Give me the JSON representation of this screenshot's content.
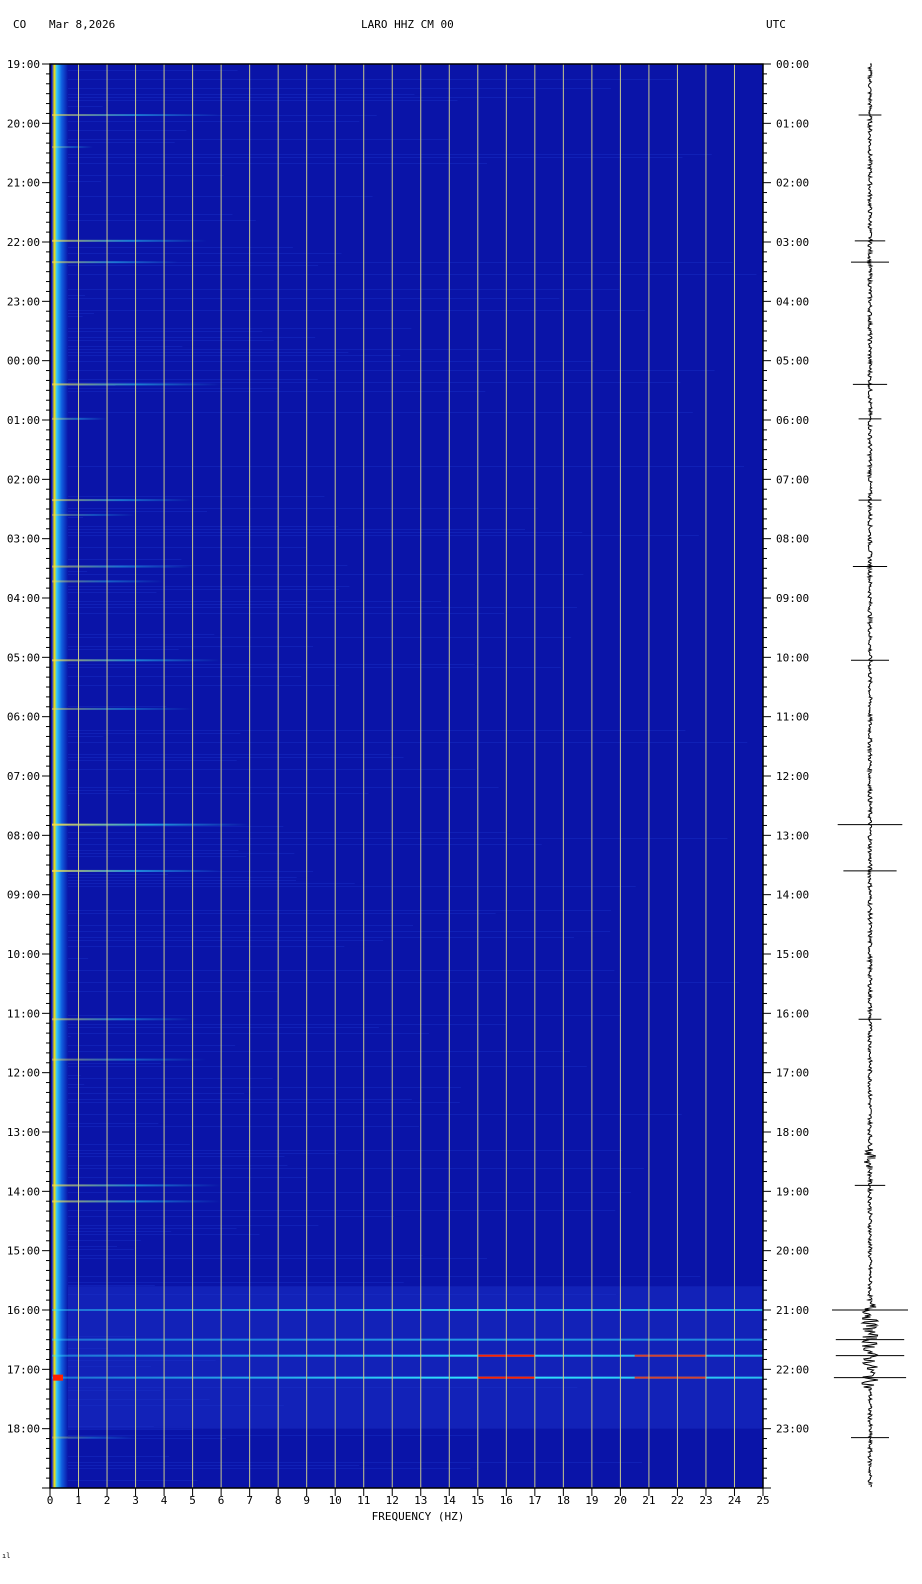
{
  "header": {
    "network": "CO",
    "date": "Mar 8,2026",
    "station": "LARO HHZ CM 00",
    "timezone": "UTC"
  },
  "footer_mark": "ıl",
  "chart_data": {
    "type": "heatmap",
    "title": "LARO HHZ CM 00",
    "xlabel": "FREQUENCY (HZ)",
    "xlim": [
      0,
      25
    ],
    "x_ticks": [
      "0",
      "1",
      "2",
      "3",
      "4",
      "5",
      "6",
      "7",
      "8",
      "9",
      "10",
      "11",
      "12",
      "13",
      "14",
      "15",
      "16",
      "17",
      "18",
      "19",
      "20",
      "21",
      "22",
      "23",
      "24",
      "25"
    ],
    "grid": true,
    "colors": {
      "background": "#0a14a8",
      "low_freq_band": "#30c8ff",
      "grid": "#c8c88c",
      "hot": "#ff2000",
      "mid": "#30e8ff"
    },
    "y_left_ticks": [
      "19:00",
      "20:00",
      "21:00",
      "22:00",
      "23:00",
      "00:00",
      "01:00",
      "02:00",
      "03:00",
      "04:00",
      "05:00",
      "06:00",
      "07:00",
      "08:00",
      "09:00",
      "10:00",
      "11:00",
      "12:00",
      "13:00",
      "14:00",
      "15:00",
      "16:00",
      "17:00",
      "18:00"
    ],
    "y_right_ticks": [
      "00:00",
      "01:00",
      "02:00",
      "03:00",
      "04:00",
      "05:00",
      "06:00",
      "07:00",
      "08:00",
      "09:00",
      "10:00",
      "11:00",
      "12:00",
      "13:00",
      "14:00",
      "15:00",
      "16:00",
      "17:00",
      "18:00",
      "19:00",
      "20:00",
      "21:00",
      "22:00",
      "23:00"
    ],
    "y_range_hours_utc": [
      0,
      24
    ],
    "events": [
      {
        "utc_hour": 0.86,
        "fmax": 6,
        "intensity": 0.6
      },
      {
        "utc_hour": 1.4,
        "fmax": 1.5,
        "intensity": 0.4
      },
      {
        "utc_hour": 2.98,
        "fmax": 5.5,
        "intensity": 0.7
      },
      {
        "utc_hour": 3.34,
        "fmax": 4.5,
        "intensity": 0.6
      },
      {
        "utc_hour": 5.4,
        "fmax": 6,
        "intensity": 0.7
      },
      {
        "utc_hour": 5.98,
        "fmax": 2,
        "intensity": 0.5
      },
      {
        "utc_hour": 7.35,
        "fmax": 5,
        "intensity": 0.6
      },
      {
        "utc_hour": 7.6,
        "fmax": 3,
        "intensity": 0.4
      },
      {
        "utc_hour": 8.47,
        "fmax": 5,
        "intensity": 0.6
      },
      {
        "utc_hour": 8.72,
        "fmax": 4,
        "intensity": 0.5
      },
      {
        "utc_hour": 10.05,
        "fmax": 6,
        "intensity": 0.7
      },
      {
        "utc_hour": 10.87,
        "fmax": 5,
        "intensity": 0.5
      },
      {
        "utc_hour": 12.82,
        "fmax": 7,
        "intensity": 0.9
      },
      {
        "utc_hour": 13.6,
        "fmax": 6,
        "intensity": 0.8
      },
      {
        "utc_hour": 16.1,
        "fmax": 5,
        "intensity": 0.6
      },
      {
        "utc_hour": 16.78,
        "fmax": 5.5,
        "intensity": 0.5
      },
      {
        "utc_hour": 18.9,
        "fmax": 6,
        "intensity": 0.7
      },
      {
        "utc_hour": 19.17,
        "fmax": 6,
        "intensity": 0.7
      },
      {
        "utc_hour": 21.0,
        "fmax": 25,
        "intensity": 0.8
      },
      {
        "utc_hour": 21.5,
        "fmax": 25,
        "intensity": 0.6
      },
      {
        "utc_hour": 21.77,
        "fmax": 25,
        "intensity": 0.9
      },
      {
        "utc_hour": 22.14,
        "fmax": 25,
        "intensity": 1.0
      },
      {
        "utc_hour": 23.15,
        "fmax": 3,
        "intensity": 0.4
      }
    ]
  },
  "seismogram": {
    "spikes": [
      {
        "utc_hour": 0.86,
        "amp": 0.3
      },
      {
        "utc_hour": 2.98,
        "amp": 0.4
      },
      {
        "utc_hour": 3.34,
        "amp": 0.5
      },
      {
        "utc_hour": 5.4,
        "amp": 0.45
      },
      {
        "utc_hour": 5.98,
        "amp": 0.3
      },
      {
        "utc_hour": 7.35,
        "amp": 0.3
      },
      {
        "utc_hour": 8.47,
        "amp": 0.45
      },
      {
        "utc_hour": 10.05,
        "amp": 0.5
      },
      {
        "utc_hour": 12.82,
        "amp": 0.85
      },
      {
        "utc_hour": 13.6,
        "amp": 0.7
      },
      {
        "utc_hour": 16.1,
        "amp": 0.3
      },
      {
        "utc_hour": 18.9,
        "amp": 0.4
      },
      {
        "utc_hour": 21.0,
        "amp": 1.0
      },
      {
        "utc_hour": 21.5,
        "amp": 0.9
      },
      {
        "utc_hour": 21.77,
        "amp": 0.9
      },
      {
        "utc_hour": 22.14,
        "amp": 0.95
      },
      {
        "utc_hour": 23.15,
        "amp": 0.5
      }
    ]
  }
}
